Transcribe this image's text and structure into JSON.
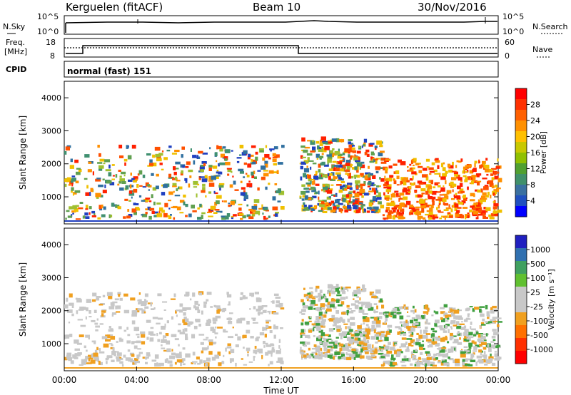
{
  "header": {
    "station": "Kerguelen (fitACF)",
    "beam": "Beam 10",
    "date": "30/Nov/2016"
  },
  "noise_panel": {
    "left_label": "N.Sky",
    "right_label": "N.Search",
    "left_ticks": [
      "10^5",
      "10^0"
    ],
    "right_ticks": [
      "10^5",
      "10^0"
    ]
  },
  "freq_panel": {
    "left_label_line1": "Freq.",
    "left_label_line2": "[MHz]",
    "left_ticks": [
      "18",
      "8"
    ],
    "right_label": "Nave",
    "right_ticks": [
      "60",
      "0"
    ],
    "cpid_label": "CPID",
    "cpid_value": "normal (fast) 151"
  },
  "chart_data": [
    {
      "type": "heatmap",
      "name": "Power",
      "ylabel": "Slant Range [km]",
      "yticks": [
        "4000",
        "3000",
        "2000",
        "1000"
      ],
      "ylim": [
        180,
        4500
      ],
      "xlim": [
        0,
        24
      ],
      "xticks": [
        "00:00",
        "04:00",
        "08:00",
        "12:00",
        "16:00",
        "20:00",
        "00:00"
      ],
      "xlabel": "Time UT",
      "colorbar_label": "Power [dB]",
      "colorbar_ticks": [
        "28",
        "24",
        "20",
        "16",
        "12",
        "8",
        "4"
      ],
      "colorbar_colors": [
        "#ff0000",
        "#ff3000",
        "#ff6000",
        "#ff9000",
        "#ffc000",
        "#c8c800",
        "#90c000",
        "#50a030",
        "#40906a",
        "#3a70a0",
        "#2050c0",
        "#0000ff"
      ],
      "colors": {
        "low": "#2040c0",
        "mid": "#60a060",
        "high": "#ff2000"
      },
      "echo_regions": [
        {
          "t0": 0.0,
          "t1": 12.0,
          "r0": 300,
          "r1": 2500,
          "intensity": "mixed"
        },
        {
          "t0": 13.0,
          "t1": 17.5,
          "r0": 500,
          "r1": 2700,
          "intensity": "mixed"
        },
        {
          "t0": 17.5,
          "t1": 24.0,
          "r0": 300,
          "r1": 2100,
          "intensity": "high"
        }
      ]
    },
    {
      "type": "heatmap",
      "name": "Velocity",
      "ylabel": "Slant Range [km]",
      "yticks": [
        "4000",
        "3000",
        "2000",
        "1000"
      ],
      "ylim": [
        180,
        4500
      ],
      "xlim": [
        0,
        24
      ],
      "xticks": [
        "00:00",
        "04:00",
        "08:00",
        "12:00",
        "16:00",
        "20:00",
        "00:00"
      ],
      "xlabel": "Time UT",
      "colorbar_label": "Velocity [m s⁻¹]",
      "colorbar_ticks": [
        "1000",
        "500",
        "100",
        "25",
        "-25",
        "-100",
        "-500",
        "-1000"
      ],
      "colorbar_colors": [
        "#2020c0",
        "#3070b0",
        "#40a060",
        "#60c030",
        "#c8c8c8",
        "#c8c8c8",
        "#f0a020",
        "#ff7000",
        "#ff3000",
        "#ff0000"
      ],
      "colors": {
        "ground": "#c8c8c8",
        "negative": "#f0a020",
        "positive": "#40a040"
      },
      "echo_regions": [
        {
          "t0": 0.0,
          "t1": 12.0,
          "r0": 300,
          "r1": 2500,
          "intensity": "ground"
        },
        {
          "t0": 13.0,
          "t1": 17.5,
          "r0": 500,
          "r1": 2700,
          "intensity": "mixed"
        },
        {
          "t0": 17.5,
          "t1": 24.0,
          "r0": 300,
          "r1": 2100,
          "intensity": "mixed"
        }
      ]
    }
  ]
}
